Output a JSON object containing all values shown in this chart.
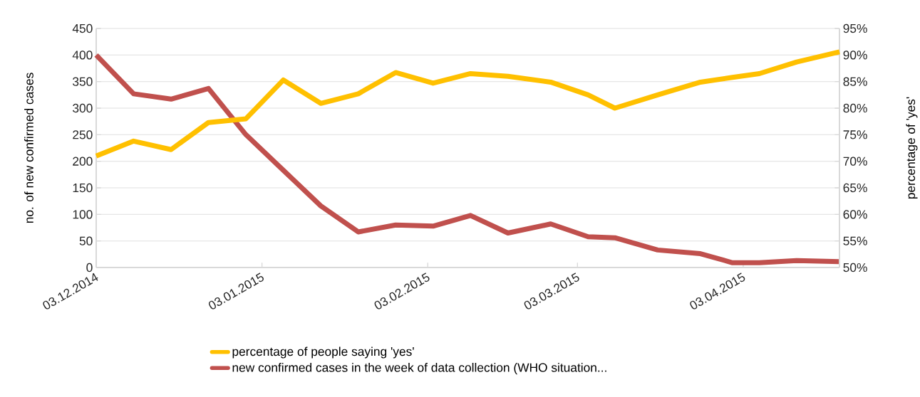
{
  "chart_data": {
    "type": "line",
    "ylabel": "no. of new confirmed cases",
    "y2label": "percentage of 'yes'",
    "x": [
      "2014-12-03",
      "2014-12-10",
      "2014-12-17",
      "2014-12-24",
      "2014-12-31",
      "2015-01-07",
      "2015-01-14",
      "2015-01-21",
      "2015-01-28",
      "2015-02-04",
      "2015-02-11",
      "2015-02-18",
      "2015-02-26",
      "2015-03-05",
      "2015-03-10",
      "2015-03-18",
      "2015-03-26",
      "2015-04-01",
      "2015-04-06",
      "2015-04-13",
      "2015-04-21"
    ],
    "series": [
      {
        "name": "percentage of people saying 'yes'",
        "color": "#ffc000",
        "axis": "y2",
        "values": [
          71.0,
          73.8,
          72.2,
          77.3,
          78.0,
          85.3,
          80.9,
          82.7,
          86.7,
          84.7,
          86.5,
          86.0,
          84.9,
          82.5,
          80.0,
          82.5,
          84.9,
          85.8,
          86.5,
          88.7,
          90.6
        ]
      },
      {
        "name": "new confirmed cases in the week of data collection (WHO situation...",
        "color": "#c0504d",
        "values": [
          400,
          327,
          317,
          337,
          250,
          183,
          116,
          67,
          80,
          78,
          98,
          65,
          82,
          58,
          56,
          33,
          26,
          9,
          9,
          13,
          11
        ]
      }
    ],
    "xlim": [
      "2014-12-03",
      "2015-04-21"
    ],
    "xticks": [
      {
        "value": "2014-12-03",
        "label": "03.12.2014"
      },
      {
        "value": "2015-01-03",
        "label": "03.01.2015"
      },
      {
        "value": "2015-02-03",
        "label": "03.02.2015"
      },
      {
        "value": "2015-03-03",
        "label": "03.03.2015"
      },
      {
        "value": "2015-04-03",
        "label": "03.04.2015"
      }
    ],
    "ylim": [
      0,
      450
    ],
    "yticks": [
      0,
      50,
      100,
      150,
      200,
      250,
      300,
      350,
      400,
      450
    ],
    "y2lim": [
      50,
      95
    ],
    "y2ticks": [
      {
        "value": 50,
        "label": "50%"
      },
      {
        "value": 55,
        "label": "55%"
      },
      {
        "value": 60,
        "label": "60%"
      },
      {
        "value": 65,
        "label": "65%"
      },
      {
        "value": 70,
        "label": "70%"
      },
      {
        "value": 75,
        "label": "75%"
      },
      {
        "value": 80,
        "label": "80%"
      },
      {
        "value": 85,
        "label": "85%"
      },
      {
        "value": 90,
        "label": "90%"
      },
      {
        "value": 95,
        "label": "95%"
      }
    ],
    "grid": "y",
    "legend": "bottom"
  }
}
